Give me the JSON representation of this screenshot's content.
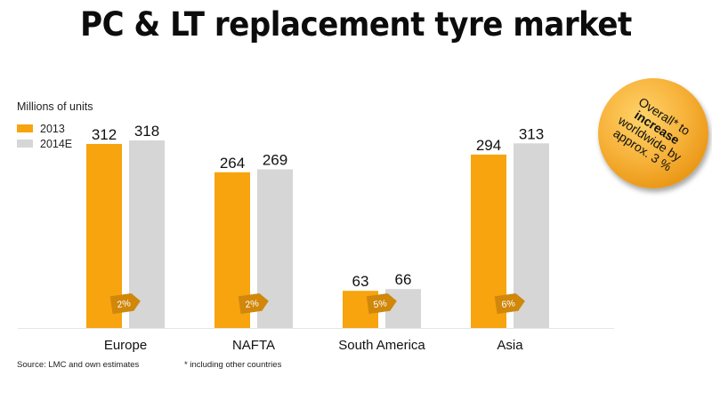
{
  "title": "PC & LT replacement tyre market",
  "unit_label": "Millions of units",
  "source": "Source: LMC and own estimates",
  "footnote": "* including other countries",
  "badge": {
    "line1": "Overall* to",
    "line2": "increase",
    "line3": "worldwide by",
    "line4": "approx. 3 %"
  },
  "colors": {
    "y2013": "#f7a40f",
    "y2014": "#d6d6d6",
    "growth_tag": "#d0870a",
    "badge": "#f5a623"
  },
  "chart_data": {
    "type": "bar",
    "categories": [
      "Europe",
      "NAFTA",
      "South America",
      "Asia"
    ],
    "series": [
      {
        "name": "2013",
        "values": [
          312,
          264,
          63,
          294
        ]
      },
      {
        "name": "2014E",
        "values": [
          318,
          269,
          66,
          313
        ]
      }
    ],
    "value_labels": [
      [
        "312",
        "264",
        "63",
        "294"
      ],
      [
        "318",
        "269",
        "66",
        "313"
      ]
    ],
    "growth_labels": [
      "2%",
      "2%",
      "5%",
      "6%"
    ],
    "ylabel": "Millions of units",
    "ylim": [
      0,
      330
    ],
    "grid": false,
    "legend_position": "top-left"
  }
}
